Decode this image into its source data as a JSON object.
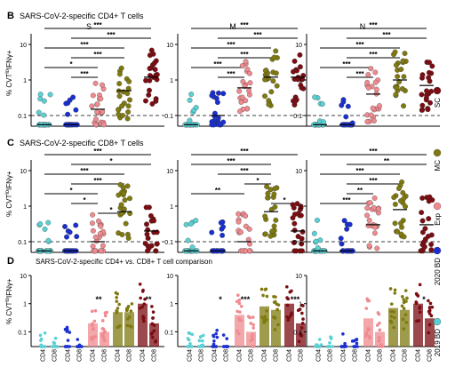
{
  "panel_letters": {
    "B": "B",
    "C": "C",
    "D": "D"
  },
  "panel_titles": {
    "B": "SARS-CoV-2-specific CD4+ T cells",
    "C": "SARS-CoV-2-specific CD8+ T cells",
    "D": "SARS-CoV-2-specific CD4+ vs. CD8+ T cell comparison"
  },
  "ylabel_main": "% CVT",
  "ylabel_sup": "lo",
  "ylabel_tail": "IFNγ+",
  "ytick_labels": [
    "10",
    "1",
    "0.1"
  ],
  "column_titles": [
    "S",
    "M",
    "N"
  ],
  "legend": [
    {
      "label": "SC",
      "color": "#7b0c12"
    },
    {
      "label": "MC",
      "color": "#7f7a10"
    },
    {
      "label": "Exp",
      "color": "#ef8a8f"
    },
    {
      "label": "2020 BD",
      "color": "#1a2fd0"
    },
    {
      "label": "2019 BD",
      "color": "#5ad0d4"
    }
  ],
  "d_xlabels": [
    "CD4",
    "CD8"
  ],
  "chart_data": [
    {
      "type": "scatter",
      "panel": "B",
      "subpanel": "S",
      "scale": "log",
      "ylim": [
        0.05,
        20
      ],
      "threshold": 0.1,
      "categories": [
        "2019 BD",
        "2020 BD",
        "Exp",
        "MC",
        "SC"
      ],
      "medians": [
        0.05,
        0.05,
        0.15,
        0.5,
        1.2
      ],
      "significance": [
        {
          "from": 0,
          "to": 4,
          "label": "***"
        },
        {
          "from": 1,
          "to": 4,
          "label": "***"
        },
        {
          "from": 0,
          "to": 3,
          "label": "***"
        },
        {
          "from": 1,
          "to": 3,
          "label": "***"
        },
        {
          "from": 0,
          "to": 2,
          "label": "*"
        },
        {
          "from": 1,
          "to": 2,
          "label": "***"
        }
      ]
    },
    {
      "type": "scatter",
      "panel": "B",
      "subpanel": "M",
      "scale": "log",
      "ylim": [
        0.05,
        20
      ],
      "threshold": 0.1,
      "categories": [
        "2019 BD",
        "2020 BD",
        "Exp",
        "MC",
        "SC"
      ],
      "medians": [
        0.05,
        0.1,
        0.6,
        1.2,
        1.2
      ],
      "significance": [
        {
          "from": 0,
          "to": 4,
          "label": "***"
        },
        {
          "from": 1,
          "to": 4,
          "label": "***"
        },
        {
          "from": 0,
          "to": 3,
          "label": "***"
        },
        {
          "from": 1,
          "to": 3,
          "label": "***"
        },
        {
          "from": 0,
          "to": 2,
          "label": "***"
        },
        {
          "from": 1,
          "to": 2,
          "label": "***"
        }
      ]
    },
    {
      "type": "scatter",
      "panel": "B",
      "subpanel": "N",
      "scale": "log",
      "ylim": [
        0.05,
        20
      ],
      "threshold": 0.1,
      "categories": [
        "2019 BD",
        "2020 BD",
        "Exp",
        "MC",
        "SC"
      ],
      "medians": [
        0.05,
        0.05,
        0.4,
        1.0,
        0.7
      ],
      "significance": [
        {
          "from": 0,
          "to": 4,
          "label": "***"
        },
        {
          "from": 1,
          "to": 4,
          "label": "***"
        },
        {
          "from": 0,
          "to": 3,
          "label": "***"
        },
        {
          "from": 1,
          "to": 3,
          "label": "***"
        },
        {
          "from": 0,
          "to": 2,
          "label": "***"
        },
        {
          "from": 1,
          "to": 2,
          "label": "***"
        }
      ]
    },
    {
      "type": "scatter",
      "panel": "C",
      "subpanel": "S",
      "scale": "log",
      "ylim": [
        0.05,
        20
      ],
      "threshold": 0.1,
      "categories": [
        "2019 BD",
        "2020 BD",
        "Exp",
        "MC",
        "SC"
      ],
      "medians": [
        0.05,
        0.05,
        0.1,
        0.7,
        0.2
      ],
      "significance": [
        {
          "from": 0,
          "to": 4,
          "label": "***"
        },
        {
          "from": 1,
          "to": 4,
          "label": "*"
        },
        {
          "from": 0,
          "to": 3,
          "label": "***"
        },
        {
          "from": 1,
          "to": 3,
          "label": "***"
        },
        {
          "from": 0,
          "to": 2,
          "label": "*"
        },
        {
          "from": 1,
          "to": 2,
          "label": "*"
        },
        {
          "from": 2,
          "to": 3,
          "label": "*"
        }
      ]
    },
    {
      "type": "scatter",
      "panel": "C",
      "subpanel": "M",
      "scale": "log",
      "ylim": [
        0.05,
        20
      ],
      "threshold": 0.1,
      "categories": [
        "2019 BD",
        "2020 BD",
        "Exp",
        "MC",
        "SC"
      ],
      "medians": [
        0.05,
        0.05,
        0.1,
        0.7,
        0.2
      ],
      "significance": [
        {
          "from": 0,
          "to": 4,
          "label": "***"
        },
        {
          "from": 0,
          "to": 3,
          "label": "***"
        },
        {
          "from": 1,
          "to": 3,
          "label": "***"
        },
        {
          "from": 2,
          "to": 3,
          "label": "*"
        },
        {
          "from": 0,
          "to": 2,
          "label": "**"
        },
        {
          "from": 3,
          "to": 4,
          "label": "*"
        }
      ]
    },
    {
      "type": "scatter",
      "panel": "C",
      "subpanel": "N",
      "scale": "log",
      "ylim": [
        0.05,
        20
      ],
      "threshold": 0.1,
      "categories": [
        "2019 BD",
        "2020 BD",
        "Exp",
        "MC",
        "SC"
      ],
      "medians": [
        0.05,
        0.05,
        0.3,
        0.8,
        0.3
      ],
      "significance": [
        {
          "from": 0,
          "to": 4,
          "label": "***"
        },
        {
          "from": 1,
          "to": 4,
          "label": "**"
        },
        {
          "from": 0,
          "to": 3,
          "label": "***"
        },
        {
          "from": 1,
          "to": 3,
          "label": "***"
        },
        {
          "from": 1,
          "to": 2,
          "label": "**"
        },
        {
          "from": 0,
          "to": 2,
          "label": "***"
        }
      ]
    },
    {
      "type": "bar",
      "panel": "D",
      "subpanel": "S",
      "scale": "log",
      "categories": [
        "CD4",
        "CD8",
        "CD4",
        "CD8",
        "CD4",
        "CD8",
        "CD4",
        "CD8",
        "CD4",
        "CD8"
      ],
      "values": [
        0.02,
        0.02,
        0.03,
        0.02,
        0.2,
        0.1,
        0.5,
        0.5,
        1.0,
        0.2
      ],
      "significance": [
        {
          "group": 2,
          "label": "**"
        },
        {
          "group": 4,
          "label": "**"
        }
      ]
    },
    {
      "type": "bar",
      "panel": "D",
      "subpanel": "M",
      "scale": "log",
      "categories": [
        "CD4",
        "CD8",
        "CD4",
        "CD8",
        "CD4",
        "CD8",
        "CD4",
        "CD8",
        "CD4",
        "CD8"
      ],
      "values": [
        0.02,
        0.02,
        0.03,
        0.02,
        0.4,
        0.1,
        0.8,
        0.6,
        1.0,
        0.2
      ],
      "significance": [
        {
          "group": 1,
          "label": "*"
        },
        {
          "group": 2,
          "label": "***"
        },
        {
          "group": 4,
          "label": "***"
        }
      ]
    },
    {
      "type": "bar",
      "panel": "D",
      "subpanel": "N",
      "scale": "log",
      "categories": [
        "CD4",
        "CD8",
        "CD4",
        "CD8",
        "CD4",
        "CD8",
        "CD4",
        "CD8",
        "CD4",
        "CD8"
      ],
      "values": [
        0.02,
        0.02,
        0.03,
        0.02,
        0.3,
        0.1,
        0.7,
        0.6,
        1.0,
        0.3
      ],
      "significance": [
        {
          "group": 4,
          "label": "*"
        }
      ]
    }
  ]
}
